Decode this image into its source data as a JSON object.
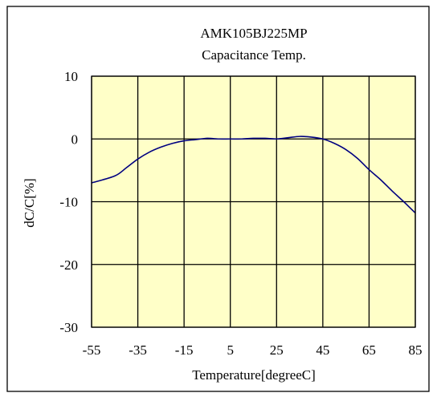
{
  "chart_data": {
    "type": "line",
    "title": "AMK105BJ225MP",
    "subtitle": "Capacitance Temp.",
    "xlabel": "Temperature[degreeC]",
    "ylabel": "dC/C[%]",
    "xlim": [
      -55,
      85
    ],
    "ylim": [
      -30,
      10
    ],
    "xticks": [
      -55,
      -35,
      -15,
      5,
      25,
      45,
      65,
      85
    ],
    "yticks": [
      10,
      0,
      -10,
      -20,
      -30
    ],
    "grid": true,
    "legend": "none",
    "colors": {
      "plot_background": "#FFFFC8",
      "grid": "#000000",
      "series": "#000080",
      "frame": "#000000"
    },
    "series": [
      {
        "x": [
          -55,
          -45,
          -40,
          -35,
          -30,
          -25,
          -20,
          -15,
          -10,
          -5,
          0,
          5,
          10,
          15,
          20,
          25,
          30,
          35,
          40,
          45,
          50,
          55,
          60,
          65,
          70,
          75,
          80,
          85
        ],
        "y": [
          -7.0,
          -5.9,
          -4.6,
          -3.2,
          -2.1,
          -1.3,
          -0.7,
          -0.3,
          -0.1,
          0.1,
          0.0,
          0.0,
          0.0,
          0.1,
          0.1,
          0.0,
          0.2,
          0.4,
          0.3,
          0.0,
          -0.7,
          -1.7,
          -3.1,
          -4.9,
          -6.5,
          -8.3,
          -10.0,
          -11.8
        ]
      }
    ]
  }
}
